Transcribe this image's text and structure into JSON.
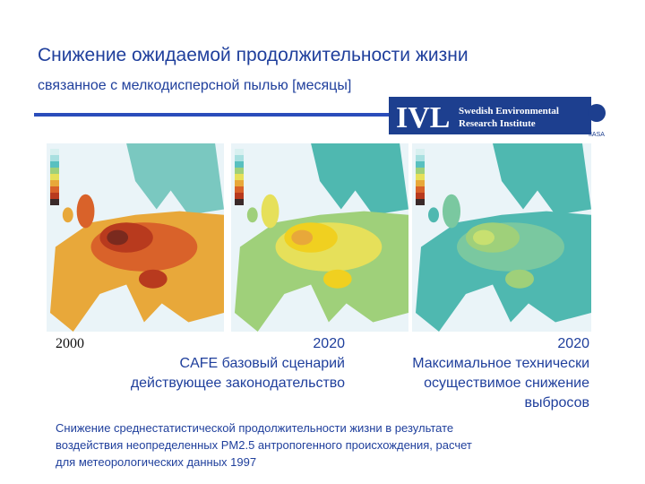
{
  "header": {
    "title": "Снижение ожидаемой продолжительности жизни",
    "subtitle": "связанное с мелкодисперсной пылью [месяцы]"
  },
  "logo": {
    "name": "IVL",
    "line1": "Swedish Environmental",
    "line2": "Research Institute",
    "org": "IIASA"
  },
  "maps": [
    {
      "caption": [
        "2000"
      ]
    },
    {
      "caption": [
        "2020",
        "CAFE базовый сценарий",
        "действующее законодательство"
      ]
    },
    {
      "caption": [
        "2020",
        "Максимальное технически",
        "осуществимое снижение",
        "выбросов"
      ]
    }
  ],
  "footnote": [
    "Снижение среднестатистической продолжительности жизни в результате",
    "воздействия неопределенных PM2.5 антропогенного происхождения, расчет",
    "для метеорологических данных 1997"
  ]
}
